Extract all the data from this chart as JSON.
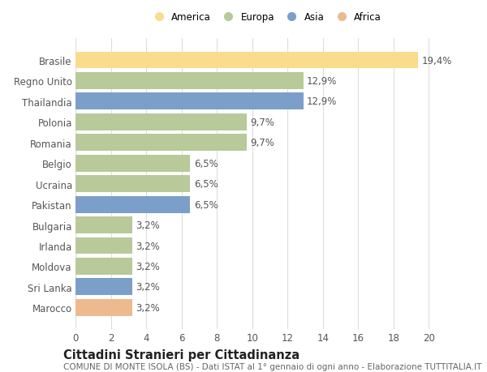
{
  "categories": [
    "Marocco",
    "Sri Lanka",
    "Moldova",
    "Irlanda",
    "Bulgaria",
    "Pakistan",
    "Ucraina",
    "Belgio",
    "Romania",
    "Polonia",
    "Thailandia",
    "Regno Unito",
    "Brasile"
  ],
  "values": [
    3.2,
    3.2,
    3.2,
    3.2,
    3.2,
    6.5,
    6.5,
    6.5,
    9.7,
    9.7,
    12.9,
    12.9,
    19.4
  ],
  "colors": [
    "#EDBA8F",
    "#7B9FC9",
    "#B8C99A",
    "#B8C99A",
    "#B8C99A",
    "#7B9FC9",
    "#B8C99A",
    "#B8C99A",
    "#B8C99A",
    "#B8C99A",
    "#7B9FC9",
    "#B8C99A",
    "#F9DC8C"
  ],
  "labels": [
    "3,2%",
    "3,2%",
    "3,2%",
    "3,2%",
    "3,2%",
    "6,5%",
    "6,5%",
    "6,5%",
    "9,7%",
    "9,7%",
    "12,9%",
    "12,9%",
    "19,4%"
  ],
  "legend": [
    {
      "label": "America",
      "color": "#F9DC8C"
    },
    {
      "label": "Europa",
      "color": "#B8C99A"
    },
    {
      "label": "Asia",
      "color": "#7B9FC9"
    },
    {
      "label": "Africa",
      "color": "#EDBA8F"
    }
  ],
  "xlim": [
    0,
    21.5
  ],
  "xticks": [
    0,
    2,
    4,
    6,
    8,
    10,
    12,
    14,
    16,
    18,
    20
  ],
  "title": "Cittadini Stranieri per Cittadinanza",
  "subtitle": "COMUNE DI MONTE ISOLA (BS) - Dati ISTAT al 1° gennaio di ogni anno - Elaborazione TUTTITALIA.IT",
  "bg_color": "#FFFFFF",
  "grid_color": "#DDDDDD",
  "bar_height": 0.82,
  "label_fontsize": 8.5,
  "tick_fontsize": 8.5,
  "title_fontsize": 10.5,
  "subtitle_fontsize": 7.5
}
